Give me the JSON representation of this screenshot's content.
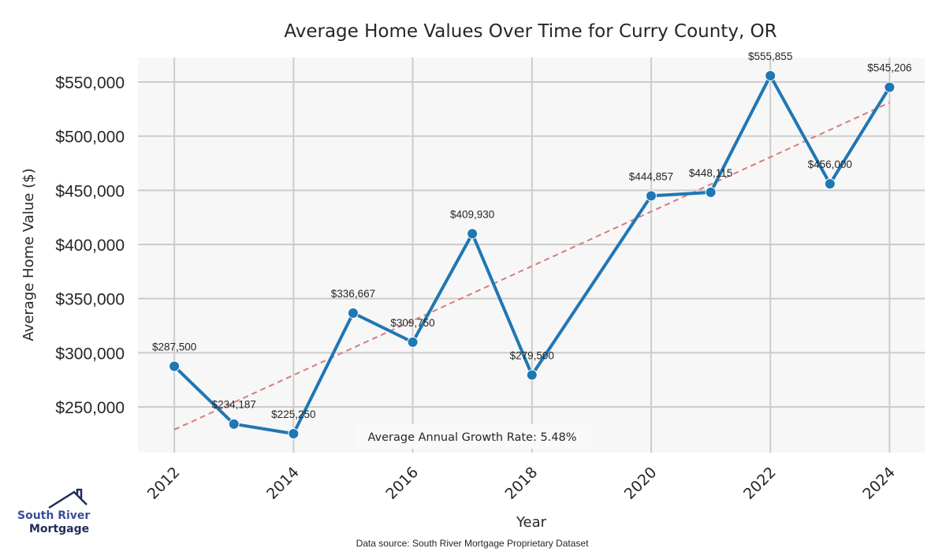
{
  "chart_data": {
    "type": "line",
    "title": "Average Home Values Over Time for Curry County, OR",
    "xlabel": "Year",
    "ylabel": "Average Home Value ($)",
    "x": [
      2012,
      2013,
      2014,
      2015,
      2016,
      2017,
      2018,
      2020,
      2021,
      2022,
      2023,
      2024
    ],
    "series": [
      {
        "name": "Average Home Value",
        "color": "#1f77b4",
        "values": [
          287500,
          234187,
          225250,
          336667,
          309750,
          409930,
          279500,
          444857,
          448115,
          555855,
          456000,
          545206
        ],
        "labels": [
          "$287,500",
          "$234,187",
          "$225,250",
          "$336,667",
          "$309,750",
          "$409,930",
          "$279,500",
          "$444,857",
          "$448,115",
          "$555,855",
          "$456,000",
          "$545,206"
        ]
      },
      {
        "name": "Trend",
        "style": "dashed",
        "color": "#d97c7c",
        "x": [
          2012,
          2024
        ],
        "values": [
          229000,
          531000
        ]
      }
    ],
    "xticks": [
      2012,
      2014,
      2016,
      2018,
      2020,
      2022,
      2024
    ],
    "xtick_labels": [
      "2012",
      "2014",
      "2016",
      "2018",
      "2020",
      "2022",
      "2024"
    ],
    "yticks": [
      250000,
      300000,
      350000,
      400000,
      450000,
      500000,
      550000
    ],
    "ytick_labels": [
      "$250,000",
      "$300,000",
      "$350,000",
      "$400,000",
      "$450,000",
      "$500,000",
      "$550,000"
    ],
    "xlim": [
      2011.39,
      2024.59
    ],
    "ylim": [
      207757,
      572574
    ],
    "grid": true,
    "annotation": "Average Annual Growth Rate: 5.48%",
    "source": "Data source: South River Mortgage Proprietary Dataset",
    "colors": {
      "background": "#f7f7f7",
      "grid": "#cccccc",
      "line": "#1f77b4",
      "trend": "#d97c7c"
    }
  },
  "logo": {
    "line1": "South River",
    "line2": "Mortgage",
    "color1": "#3a4f9a",
    "color2": "#1f2d5c"
  }
}
